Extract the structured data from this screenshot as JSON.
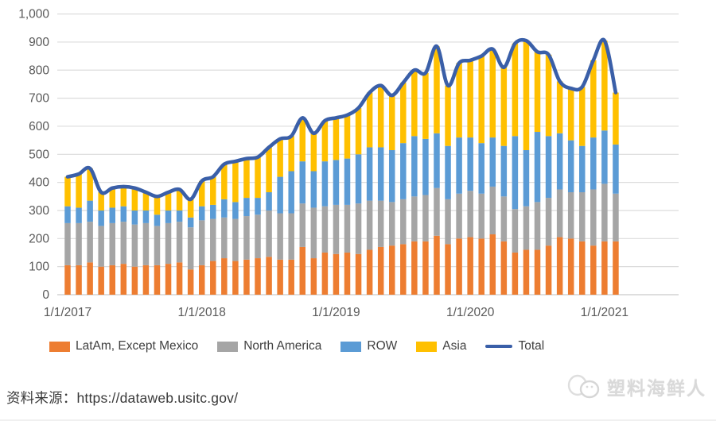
{
  "chart_data": {
    "type": "bar",
    "stacked": true,
    "title": "",
    "xlabel": "",
    "ylabel": "",
    "ylim": [
      0,
      1000
    ],
    "y_tick_step": 100,
    "y_tick_labels": [
      "0",
      "100",
      "200",
      "300",
      "400",
      "500",
      "600",
      "700",
      "800",
      "900",
      "1,000"
    ],
    "x_axis_labels": [
      "1/1/2017",
      "1/1/2018",
      "1/1/2019",
      "1/1/2020",
      "1/1/2021"
    ],
    "grid": true,
    "legend_position": "bottom",
    "categories": [
      "1/1/2017",
      "2/1/2017",
      "3/1/2017",
      "4/1/2017",
      "5/1/2017",
      "6/1/2017",
      "7/1/2017",
      "8/1/2017",
      "9/1/2017",
      "10/1/2017",
      "11/1/2017",
      "12/1/2017",
      "1/1/2018",
      "2/1/2018",
      "3/1/2018",
      "4/1/2018",
      "5/1/2018",
      "6/1/2018",
      "7/1/2018",
      "8/1/2018",
      "9/1/2018",
      "10/1/2018",
      "11/1/2018",
      "12/1/2018",
      "1/1/2019",
      "2/1/2019",
      "3/1/2019",
      "4/1/2019",
      "5/1/2019",
      "6/1/2019",
      "7/1/2019",
      "8/1/2019",
      "9/1/2019",
      "10/1/2019",
      "11/1/2019",
      "12/1/2019",
      "1/1/2020",
      "2/1/2020",
      "3/1/2020",
      "4/1/2020",
      "5/1/2020",
      "6/1/2020",
      "7/1/2020",
      "8/1/2020",
      "9/1/2020",
      "10/1/2020",
      "11/1/2020",
      "12/1/2020",
      "1/1/2021",
      "2/1/2021"
    ],
    "series": [
      {
        "name": "LatAm, Except Mexico",
        "type": "bar",
        "color": "#ED7D31",
        "values": [
          105,
          105,
          115,
          100,
          105,
          110,
          100,
          105,
          105,
          110,
          115,
          90,
          105,
          120,
          130,
          120,
          125,
          130,
          135,
          125,
          125,
          170,
          130,
          150,
          145,
          150,
          145,
          160,
          170,
          175,
          180,
          190,
          190,
          210,
          180,
          200,
          205,
          200,
          215,
          190,
          150,
          160,
          160,
          175,
          205,
          200,
          190,
          175,
          190,
          190
        ]
      },
      {
        "name": "North America",
        "type": "bar",
        "color": "#A5A5A5",
        "values": [
          150,
          150,
          145,
          145,
          150,
          150,
          150,
          150,
          140,
          145,
          145,
          150,
          160,
          150,
          145,
          150,
          155,
          155,
          165,
          165,
          165,
          155,
          180,
          165,
          175,
          170,
          180,
          175,
          165,
          155,
          160,
          160,
          165,
          170,
          160,
          160,
          165,
          160,
          170,
          160,
          155,
          155,
          170,
          170,
          170,
          165,
          175,
          200,
          205,
          170
        ]
      },
      {
        "name": "ROW",
        "type": "bar",
        "color": "#5B9BD5",
        "values": [
          60,
          55,
          75,
          55,
          55,
          55,
          50,
          45,
          40,
          45,
          40,
          35,
          50,
          50,
          65,
          60,
          65,
          60,
          65,
          130,
          150,
          150,
          130,
          160,
          160,
          165,
          175,
          190,
          190,
          185,
          200,
          215,
          200,
          195,
          190,
          200,
          190,
          180,
          175,
          180,
          260,
          200,
          250,
          220,
          200,
          185,
          165,
          185,
          190,
          175
        ]
      },
      {
        "name": "Asia",
        "type": "bar",
        "color": "#FFC000",
        "values": [
          105,
          120,
          115,
          65,
          70,
          70,
          80,
          65,
          65,
          65,
          75,
          65,
          90,
          100,
          125,
          145,
          140,
          145,
          160,
          135,
          125,
          155,
          135,
          145,
          150,
          155,
          165,
          195,
          220,
          195,
          215,
          235,
          235,
          310,
          215,
          265,
          275,
          310,
          315,
          280,
          330,
          390,
          285,
          290,
          185,
          185,
          210,
          275,
          320,
          185
        ]
      },
      {
        "name": "Total",
        "type": "line",
        "color": "#3A5FA8",
        "values": [
          420,
          430,
          450,
          365,
          380,
          385,
          380,
          365,
          350,
          365,
          375,
          340,
          405,
          420,
          465,
          475,
          485,
          490,
          525,
          555,
          565,
          630,
          575,
          620,
          630,
          640,
          665,
          720,
          745,
          710,
          755,
          800,
          790,
          885,
          745,
          825,
          835,
          850,
          875,
          810,
          895,
          905,
          865,
          855,
          760,
          735,
          740,
          835,
          905,
          720
        ]
      }
    ]
  },
  "source": {
    "text": "资料来源：https://dataweb.usitc.gov/"
  },
  "watermark": {
    "text": "塑料海鲜人"
  }
}
